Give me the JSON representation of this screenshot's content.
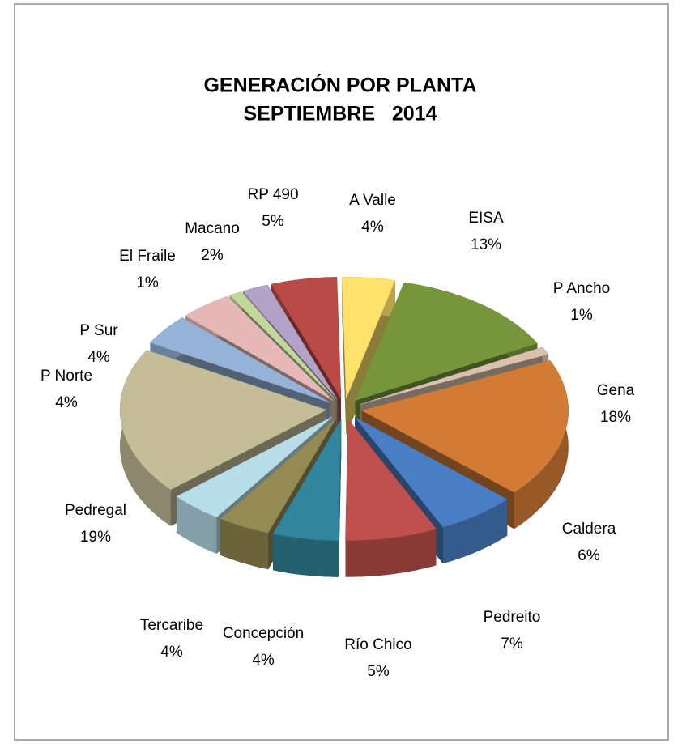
{
  "chart_data": {
    "type": "pie3d",
    "title": "GENERACIÓN POR PLANTA",
    "subtitle": "SEPTIEMBRE   2014",
    "categories": [
      "A Valle",
      "EISA",
      "P Ancho",
      "Gena",
      "Caldera",
      "Pedreito",
      "Río Chico",
      "Concepción",
      "Tercaribe",
      "Pedregal",
      "P Norte",
      "P Sur",
      "El Fraile",
      "Macano",
      "RP 490"
    ],
    "values": [
      4,
      13,
      1,
      18,
      6,
      7,
      5,
      4,
      4,
      19,
      4,
      4,
      1,
      2,
      5
    ],
    "value_labels": [
      "4%",
      "13%",
      "1%",
      "18%",
      "6%",
      "7%",
      "5%",
      "4%",
      "4%",
      "19%",
      "4%",
      "4%",
      "1%",
      "2%",
      "5%"
    ],
    "colors": [
      "#ffe26b",
      "#77963b",
      "#d8c1ae",
      "#d27b36",
      "#4a7ec4",
      "#c0504d",
      "#31859c",
      "#948a54",
      "#b7dde8",
      "#c4bd97",
      "#95b3d7",
      "#e6b9b8",
      "#c3d69b",
      "#b3a2c7",
      "#b84a47"
    ]
  }
}
